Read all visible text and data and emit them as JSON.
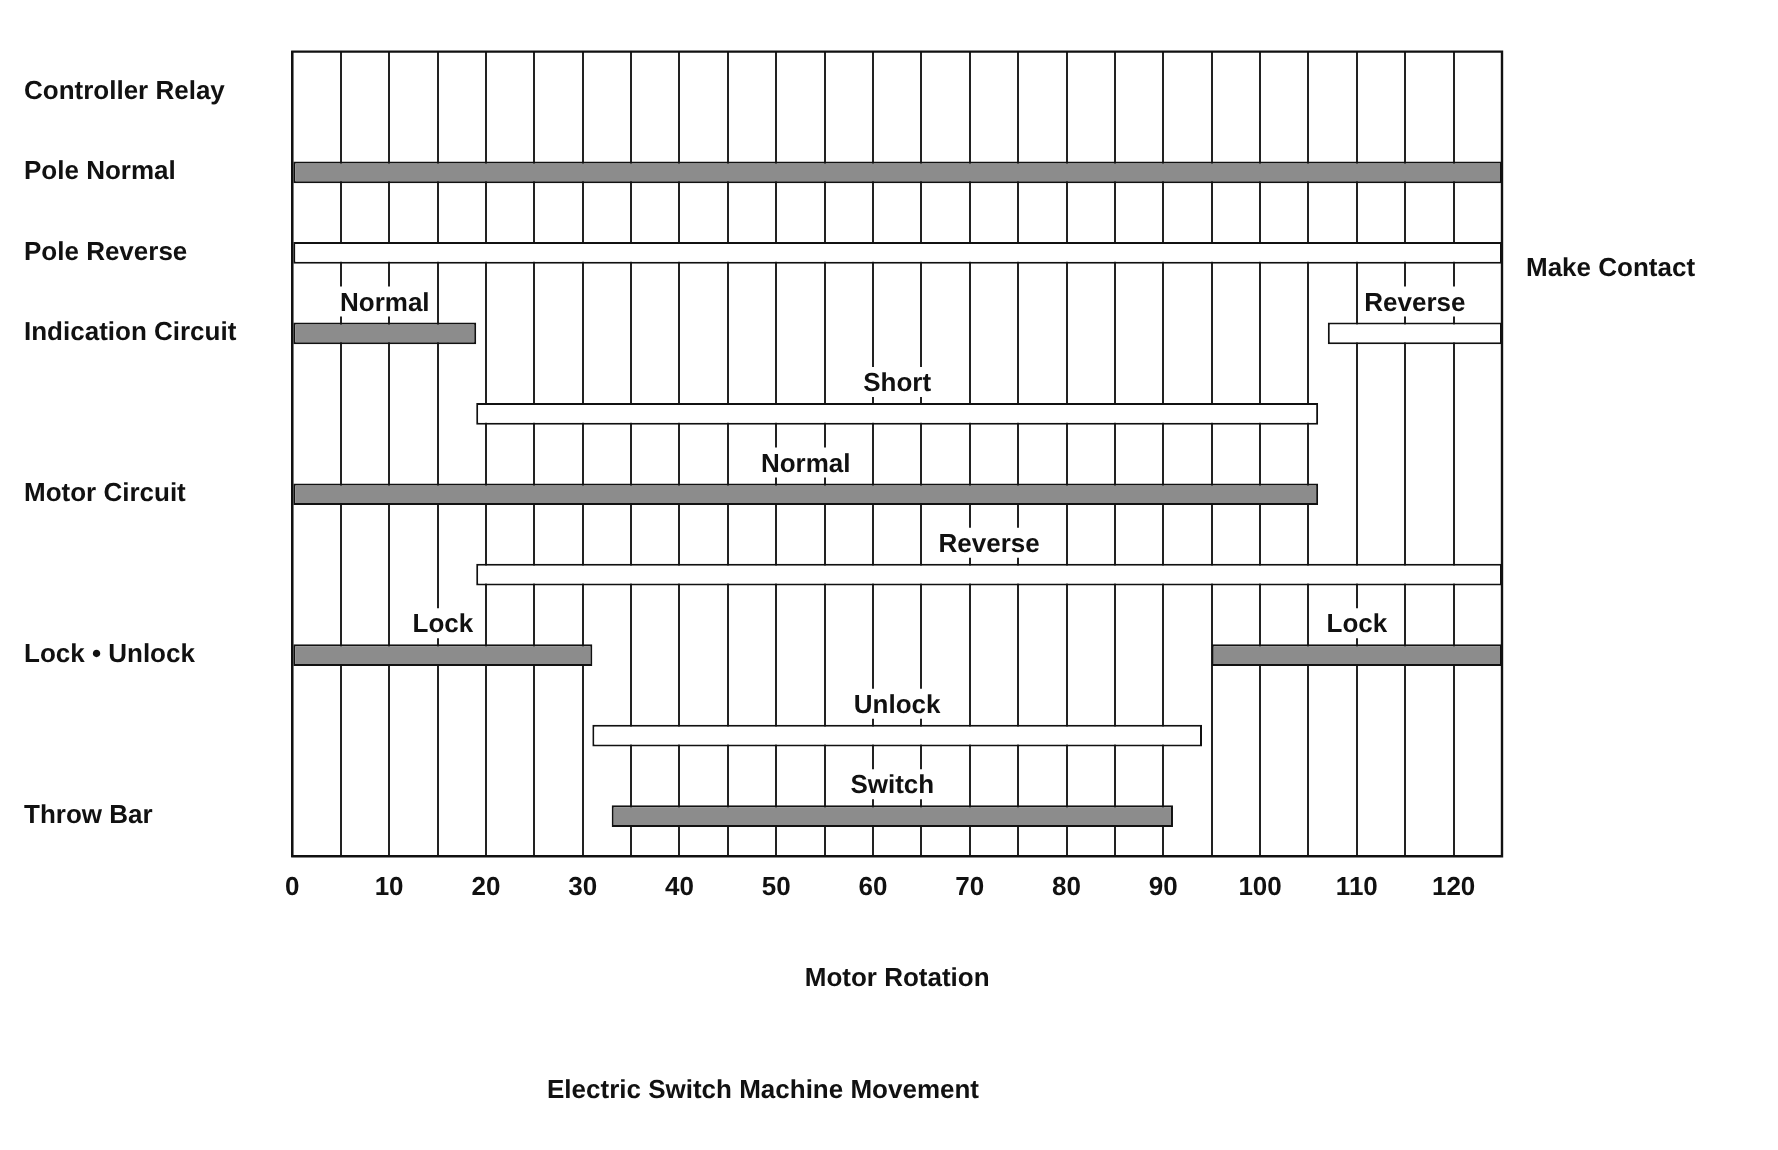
{
  "chart_data": {
    "type": "bar",
    "orientation": "horizontal",
    "title": "Electric Switch Machine Movement",
    "xlabel": "Motor Rotation",
    "categories": [
      "Controller Relay",
      "Pole Normal",
      "Pole Reverse",
      "Indication Circuit",
      null,
      "Motor Circuit",
      null,
      "Lock • Unlock",
      null,
      "Throw Bar"
    ],
    "series": [
      {
        "color": "#8c8c8c",
        "base": [
          null,
          0,
          null,
          0,
          null,
          0,
          null,
          0,
          null,
          33
        ],
        "values": [
          null,
          125,
          null,
          19,
          null,
          106,
          null,
          31,
          null,
          58
        ],
        "value_labels": [
          null,
          null,
          null,
          "Normal",
          null,
          "Normal",
          null,
          "Lock",
          null,
          "Switch"
        ]
      },
      {
        "color": "#8c8c8c",
        "base": [
          null,
          null,
          null,
          null,
          null,
          null,
          null,
          95,
          null,
          null
        ],
        "values": [
          null,
          null,
          null,
          null,
          null,
          null,
          null,
          30,
          null,
          null
        ],
        "value_labels": [
          null,
          null,
          null,
          null,
          null,
          null,
          null,
          "Lock",
          null,
          null
        ]
      },
      {
        "color": "#ffffff",
        "base": [
          null,
          null,
          0,
          null,
          19,
          null,
          19,
          null,
          31,
          null
        ],
        "values": [
          null,
          null,
          125,
          null,
          87,
          null,
          106,
          null,
          63,
          null
        ],
        "value_labels": [
          null,
          null,
          null,
          null,
          "Short",
          null,
          "Reverse",
          null,
          "Unlock",
          null
        ]
      },
      {
        "color": "#ffffff",
        "base": [
          null,
          null,
          null,
          107,
          null,
          null,
          null,
          null,
          null,
          null
        ],
        "values": [
          null,
          null,
          null,
          18,
          null,
          null,
          null,
          null,
          null,
          null
        ],
        "value_labels": [
          null,
          null,
          null,
          "Reverse",
          null,
          null,
          null,
          null,
          null,
          null
        ]
      }
    ],
    "xlim": [
      0,
      125
    ],
    "xticks": [
      0,
      {
        "value": 5,
        "label": null
      },
      10,
      {
        "value": 15,
        "label": null
      },
      20,
      {
        "value": 25,
        "label": null
      },
      30,
      {
        "value": 35,
        "label": null
      },
      40,
      {
        "value": 45,
        "label": null
      },
      50,
      {
        "value": 55,
        "label": null
      },
      60,
      {
        "value": 65,
        "label": null
      },
      70,
      {
        "value": 75,
        "label": null
      },
      80,
      {
        "value": 85,
        "label": null
      },
      90,
      {
        "value": 95,
        "label": null
      },
      100,
      {
        "value": 105,
        "label": null
      },
      110,
      {
        "value": 115,
        "label": null
      },
      120
    ],
    "grid": "x",
    "legend": false,
    "annotations": [
      "Make Contact"
    ]
  }
}
